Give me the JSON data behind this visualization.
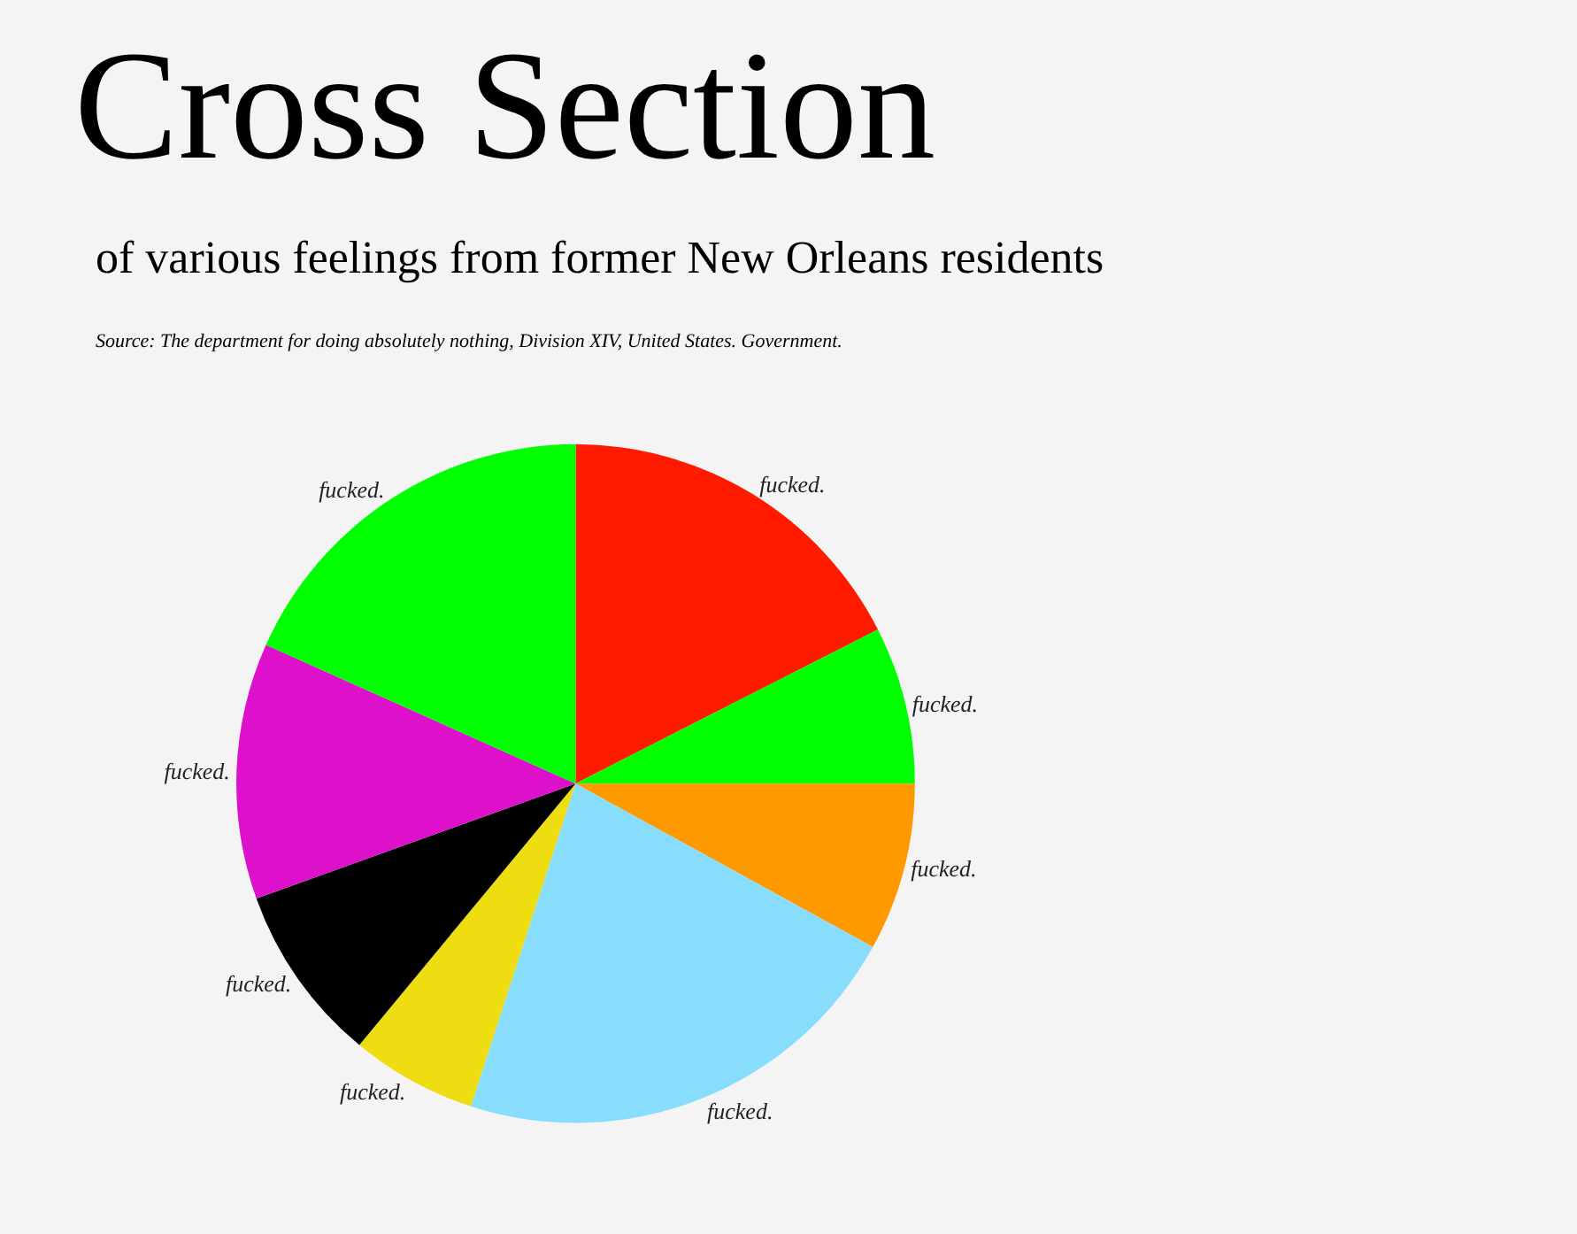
{
  "chart_data": {
    "type": "pie",
    "title": "Cross Section",
    "subtitle": "of various feelings from former New Orleans residents",
    "annotations": [
      "Source: The department for doing absolutely nothing, Division XIV, United States. Government."
    ],
    "categories": [
      "fucked.",
      "fucked.",
      "fucked.",
      "fucked.",
      "fucked.",
      "fucked.",
      "fucked.",
      "fucked."
    ],
    "values": [
      17.5,
      7.5,
      8,
      22,
      6,
      8.5,
      12.2,
      18.3
    ],
    "colors": [
      "#ff1a00",
      "#00ff00",
      "#ff9900",
      "#88ddfc",
      "#eedd11",
      "#000000",
      "#dd11cc",
      "#00ff00"
    ],
    "legend": false
  }
}
